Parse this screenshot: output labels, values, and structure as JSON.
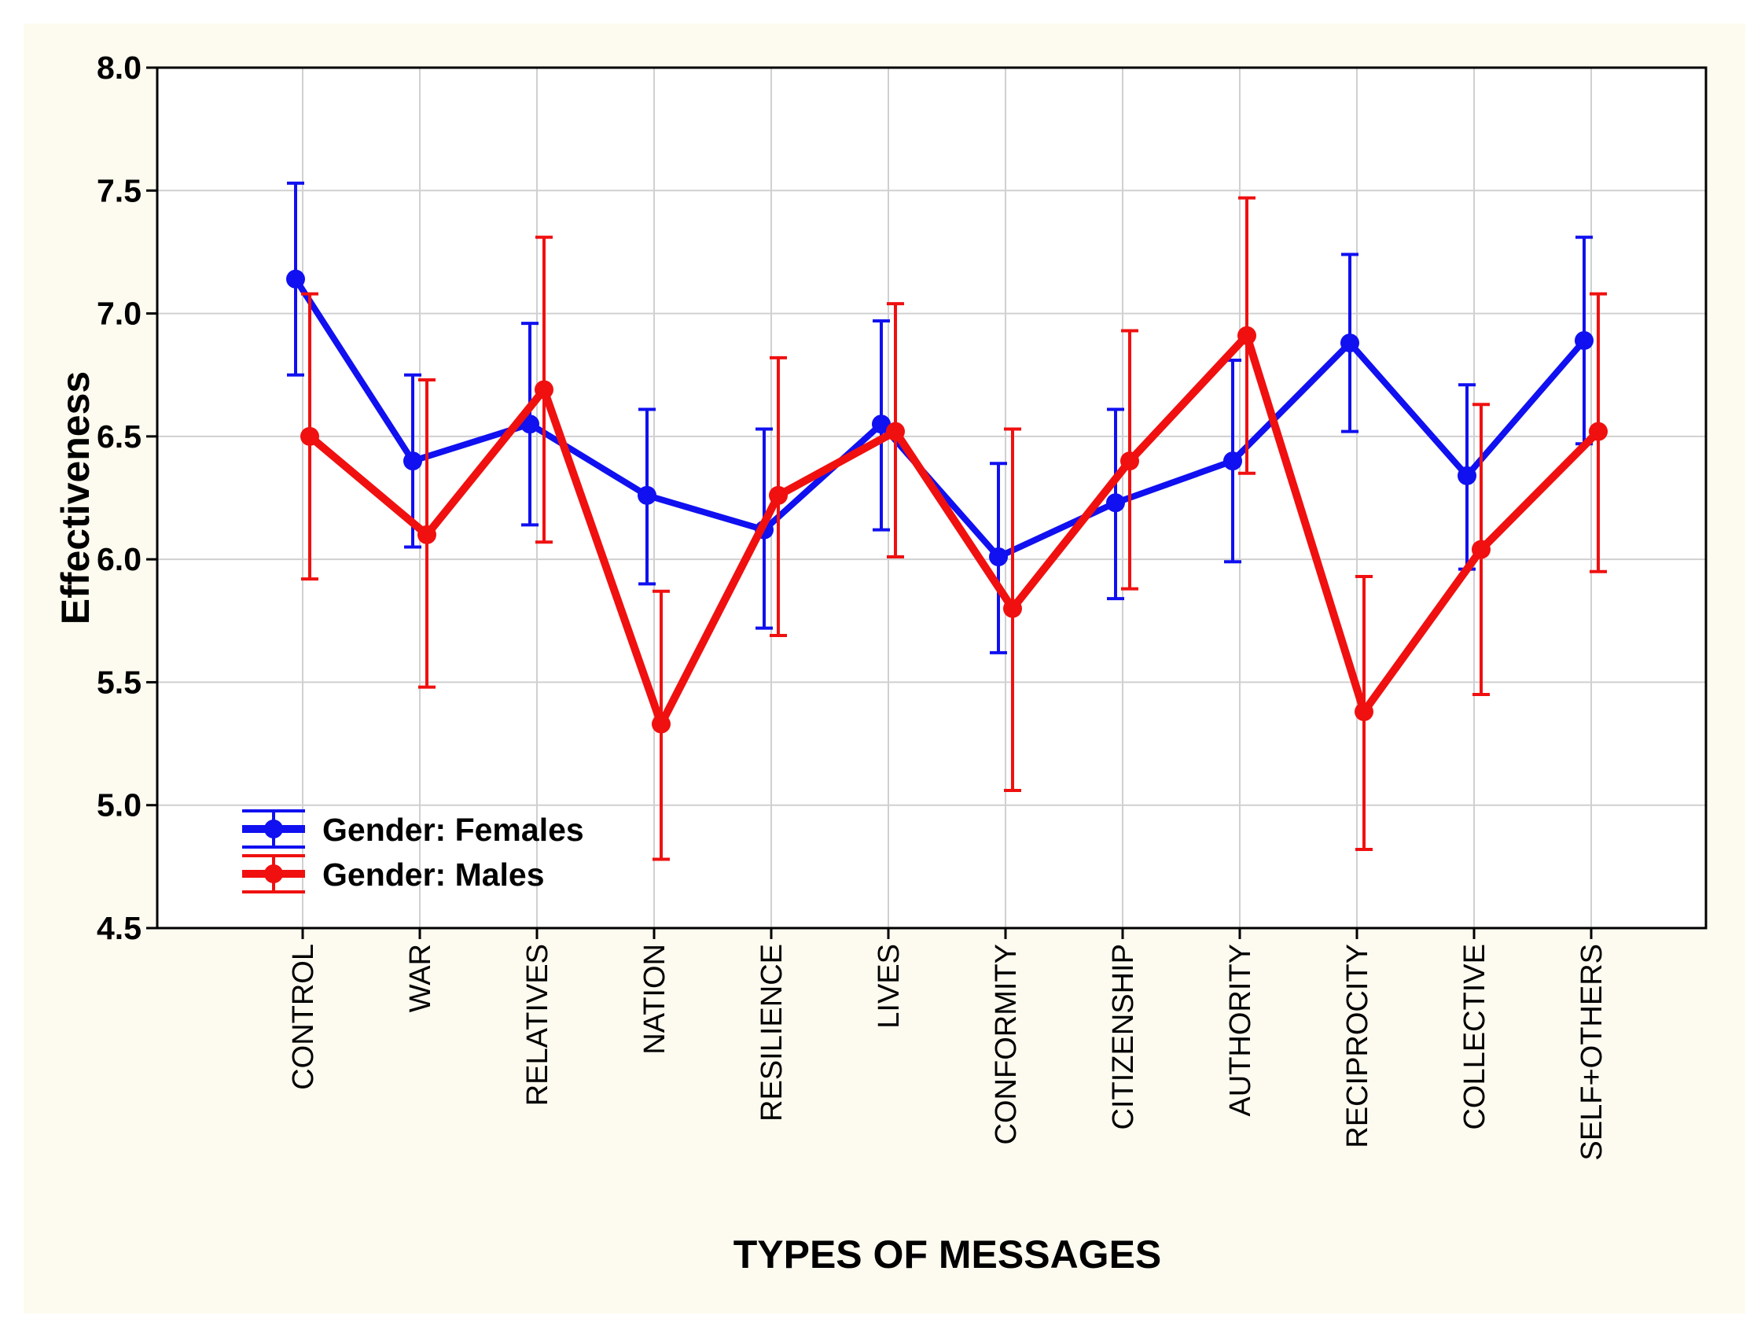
{
  "chart_data": {
    "type": "line",
    "title": "",
    "xlabel": "TYPES OF MESSAGES",
    "ylabel": "Effectiveness",
    "ylim": [
      4.5,
      8.0
    ],
    "yticks": [
      "4.5",
      "5.0",
      "5.5",
      "6.0",
      "6.5",
      "7.0",
      "7.5",
      "8.0"
    ],
    "grid": true,
    "legend_position": "bottom-left",
    "categories": [
      "CONTROL",
      "WAR",
      "RELATIVES",
      "NATION",
      "RESILIENCE",
      "LIVES",
      "CONFORMITY",
      "CITIZENSHIP",
      "AUTHORITY",
      "RECIPROCITY",
      "COLLECTIVE",
      "SELF+OTHERS"
    ],
    "series": [
      {
        "name": "Gender: Females",
        "color": "#1010f0",
        "values": [
          7.14,
          6.4,
          6.55,
          6.26,
          6.12,
          6.55,
          6.01,
          6.23,
          6.4,
          6.88,
          6.34,
          6.89
        ],
        "lower": [
          6.75,
          6.05,
          6.14,
          5.9,
          5.72,
          6.12,
          5.62,
          5.84,
          5.99,
          6.52,
          5.96,
          6.47
        ],
        "upper": [
          7.53,
          6.75,
          6.96,
          6.61,
          6.53,
          6.97,
          6.39,
          6.61,
          6.81,
          7.24,
          6.71,
          7.31
        ]
      },
      {
        "name": "Gender: Males",
        "color": "#f01010",
        "values": [
          6.5,
          6.1,
          6.69,
          5.33,
          6.26,
          6.52,
          5.8,
          6.4,
          6.91,
          5.38,
          6.04,
          6.52
        ],
        "lower": [
          5.92,
          5.48,
          6.07,
          4.78,
          5.69,
          6.01,
          5.06,
          5.88,
          6.35,
          4.82,
          5.45,
          5.95
        ],
        "upper": [
          7.08,
          6.73,
          7.31,
          5.87,
          6.82,
          7.04,
          6.53,
          6.93,
          7.47,
          5.93,
          6.63,
          7.08
        ]
      }
    ]
  },
  "colors": {
    "background": "#fdfaef",
    "plot_background": "#ffffff",
    "grid": "#d0d0d0"
  }
}
